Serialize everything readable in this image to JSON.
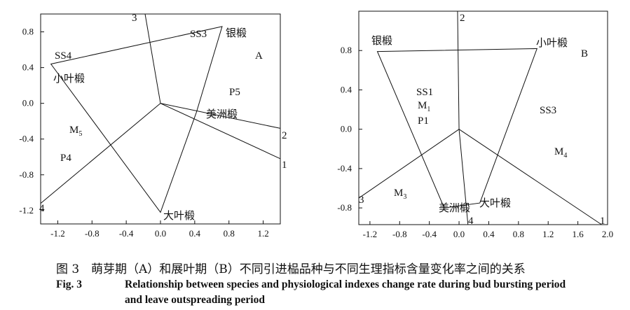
{
  "caption": {
    "cn_number": "图 3",
    "cn_text": "萌芽期（A）和展叶期（B）不同引进榀品种与不同生理指标含量变化率之间的关系",
    "en_number": "Fig. 3",
    "en_text_line1": "Relationship between species and physiological indexes change rate during bud bursting period",
    "en_text_line2": "and leave outspreading period"
  },
  "chart_data": [
    {
      "type": "scatter",
      "panel": "A",
      "xlim": [
        -1.4,
        1.4
      ],
      "ylim": [
        -1.35,
        1.0
      ],
      "xticks": [
        -1.2,
        -0.8,
        -0.4,
        0.0,
        0.4,
        0.8,
        1.2
      ],
      "yticks": [
        0.8,
        0.4,
        0.0,
        -0.4,
        -0.8,
        -1.2
      ],
      "xtick_labels": [
        "-1.2",
        "-0.8",
        "-0.4",
        "0.0",
        "0.4",
        "0.8",
        "1.2"
      ],
      "ytick_labels": [
        "0.8",
        "0.4",
        "0.0",
        "-0.4",
        "-0.8",
        "-1.2"
      ],
      "species": [
        {
          "name": "银椴",
          "x": 0.72,
          "y": 0.86
        },
        {
          "name": "小叶椴",
          "x": -1.28,
          "y": 0.44
        },
        {
          "name": "美洲椴",
          "x": 0.42,
          "y": -0.1
        },
        {
          "name": "大叶椴",
          "x": 0.0,
          "y": -1.22
        }
      ],
      "vectors": [
        {
          "name": "1",
          "x": 1.4,
          "y": -0.62
        },
        {
          "name": "2",
          "x": 1.4,
          "y": -0.28
        },
        {
          "name": "3",
          "x": -0.18,
          "y": 1.0
        },
        {
          "name": "4",
          "x": -1.4,
          "y": -1.12
        }
      ],
      "annotations": [
        "SS3",
        "SS4",
        "P5",
        "M5",
        "P4"
      ]
    },
    {
      "type": "scatter",
      "panel": "B",
      "xlim": [
        -1.35,
        2.0
      ],
      "ylim": [
        -0.97,
        1.2
      ],
      "xticks": [
        -1.2,
        -0.8,
        -0.4,
        0.0,
        0.4,
        0.8,
        1.2,
        1.6,
        2.0
      ],
      "yticks": [
        0.8,
        0.4,
        0.0,
        -0.4,
        -0.8
      ],
      "xtick_labels": [
        "-1.2",
        "-0.8",
        "-0.4",
        "0.0",
        "0.4",
        "0.8",
        "1.2",
        "1.6",
        "2.0"
      ],
      "ytick_labels": [
        "0.8",
        "0.4",
        "0.0",
        "-0.4",
        "-0.8"
      ],
      "species": [
        {
          "name": "银椴",
          "x": -1.1,
          "y": 0.79
        },
        {
          "name": "小叶椴",
          "x": 1.05,
          "y": 0.82
        },
        {
          "name": "美洲椴",
          "x": -0.2,
          "y": -0.8
        },
        {
          "name": "大叶椴",
          "x": 0.28,
          "y": -0.75
        }
      ],
      "vectors": [
        {
          "name": "1",
          "x": 1.92,
          "y": -0.97
        },
        {
          "name": "2",
          "x": -0.02,
          "y": 1.2
        },
        {
          "name": "3",
          "x": -1.35,
          "y": -0.7
        },
        {
          "name": "4",
          "x": 0.12,
          "y": -0.97
        }
      ],
      "annotations": [
        "SS1",
        "M1",
        "P1",
        "SS3",
        "M4",
        "M3"
      ]
    }
  ],
  "labels_a": {
    "panel": "A",
    "ss3": "SS3",
    "ss4": "SS4",
    "p5": "P5",
    "m5": "M",
    "m5_sub": "5",
    "p4": "P4",
    "yin": "银椴",
    "xiao": "小叶椴",
    "mei": "美洲椴",
    "da": "大叶椴",
    "v1": "1",
    "v2": "2",
    "v3": "3",
    "v4": "4"
  },
  "labels_b": {
    "panel": "B",
    "ss1": "SS1",
    "m1": "M",
    "m1_sub": "1",
    "p1": "P1",
    "ss3": "SS3",
    "m4": "M",
    "m4_sub": "4",
    "m3": "M",
    "m3_sub": "3",
    "yin": "银椴",
    "xiao": "小叶椴",
    "mei": "美洲椴",
    "da": "大叶椴",
    "v1": "1",
    "v2": "2",
    "v3": "3",
    "v4": "4"
  }
}
